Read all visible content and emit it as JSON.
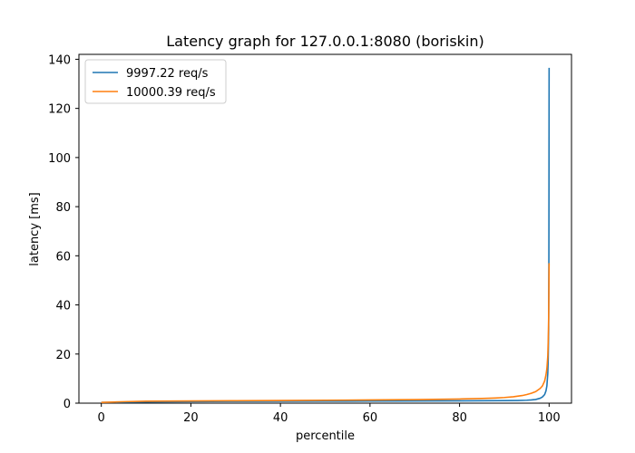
{
  "chart_data": {
    "type": "line",
    "title": "Latency graph for 127.0.0.1:8080 (boriskin)",
    "xlabel": "percentile",
    "ylabel": "latency [ms]",
    "xlim": [
      -5,
      105
    ],
    "ylim": [
      0,
      142
    ],
    "xticks": [
      0,
      20,
      40,
      60,
      80,
      100
    ],
    "yticks": [
      0,
      20,
      40,
      60,
      80,
      100,
      120,
      140
    ],
    "grid": false,
    "legend": "top-left",
    "series": [
      {
        "name": "9997.22 req/s",
        "color": "#1f77b4",
        "x": [
          0,
          10,
          20,
          30,
          40,
          50,
          60,
          70,
          80,
          85,
          90,
          93,
          95,
          96,
          97,
          98,
          98.5,
          99,
          99.3,
          99.5,
          99.7,
          99.8,
          99.9,
          99.95,
          100
        ],
        "y": [
          0.3,
          0.5,
          0.6,
          0.7,
          0.75,
          0.8,
          0.85,
          0.9,
          0.95,
          1.0,
          1.05,
          1.1,
          1.2,
          1.3,
          1.5,
          2.0,
          2.5,
          3.5,
          5.0,
          7.0,
          12.0,
          18.0,
          30.0,
          60.0,
          136.5
        ]
      },
      {
        "name": "10000.39 req/s",
        "color": "#ff7f0e",
        "x": [
          0,
          5,
          10,
          20,
          30,
          40,
          50,
          60,
          70,
          80,
          85,
          88,
          90,
          92,
          94,
          95,
          96,
          97,
          98,
          98.5,
          99,
          99.3,
          99.5,
          99.7,
          99.8,
          99.9,
          100
        ],
        "y": [
          0.3,
          0.6,
          0.8,
          0.9,
          1.0,
          1.1,
          1.2,
          1.3,
          1.45,
          1.7,
          1.9,
          2.1,
          2.3,
          2.6,
          3.1,
          3.5,
          4.0,
          4.7,
          6.0,
          7.0,
          9.0,
          11.5,
          14.0,
          19.0,
          25.0,
          35.0,
          57.0
        ]
      }
    ]
  }
}
